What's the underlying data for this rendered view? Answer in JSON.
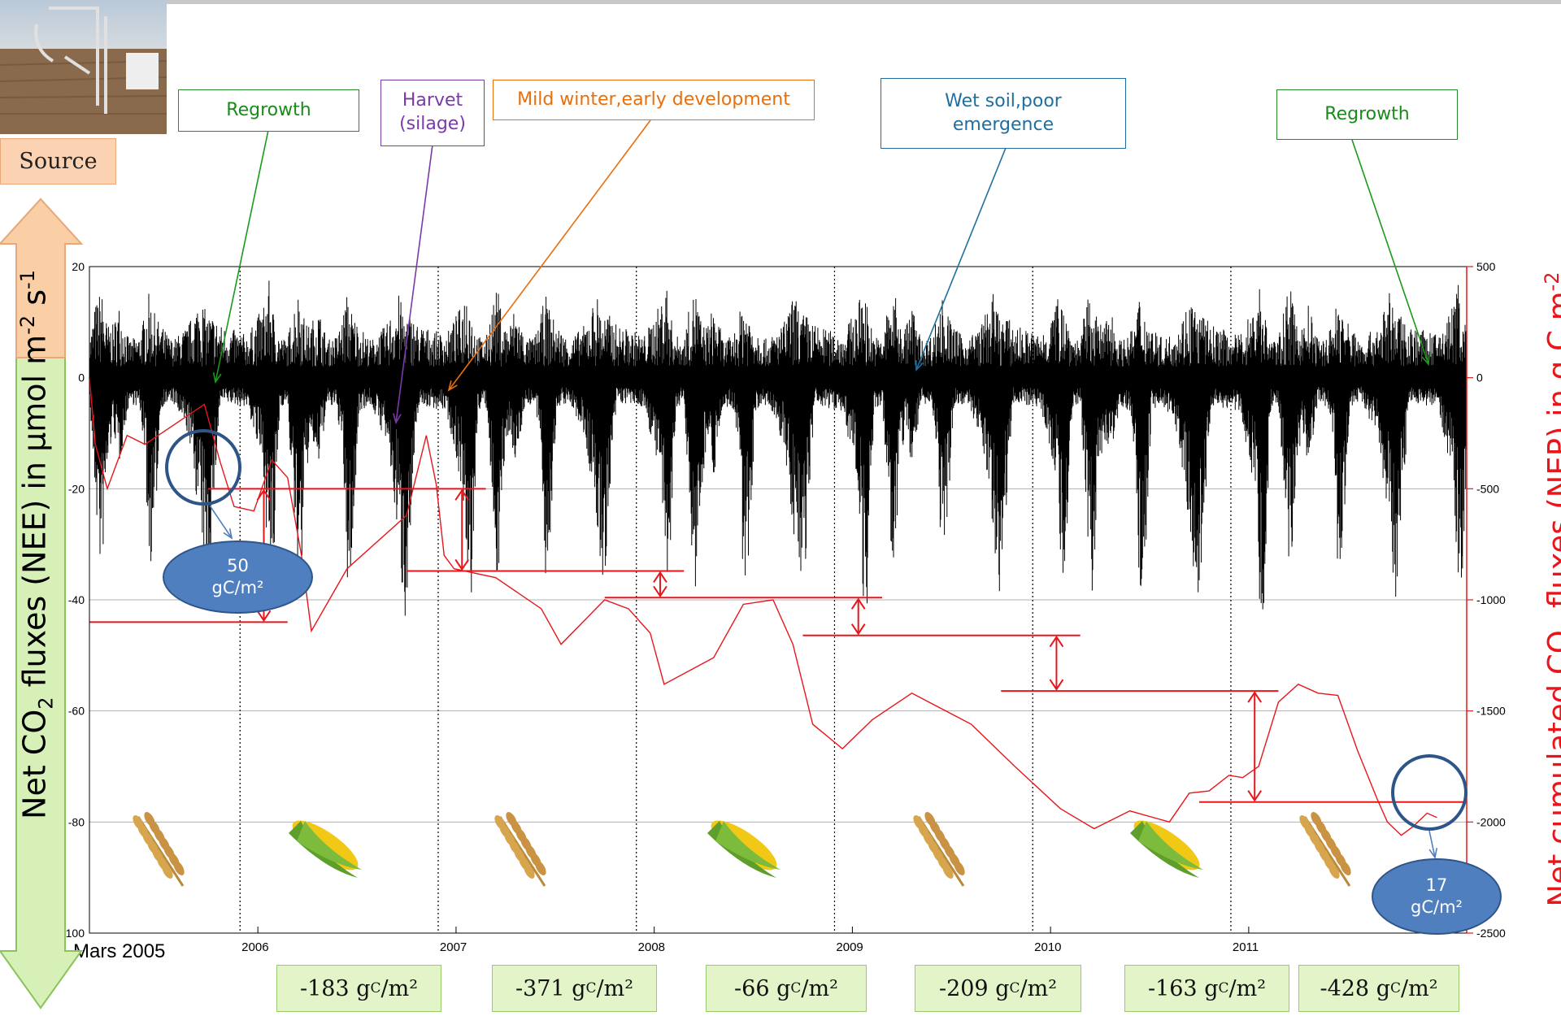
{
  "colors": {
    "flux": "#000000",
    "cumulative": "#e8161b",
    "gridline": "#b0b0b0"
  },
  "chart_data": {
    "type": "line",
    "xlabel_start": "Mars 2005",
    "x_ticks": [
      "2006",
      "2007",
      "2008",
      "2009",
      "2010",
      "2011"
    ],
    "y_left": {
      "label_parts": [
        "Net CO",
        "2",
        " fluxes (NEE) in µmol m",
        "-2",
        " s",
        "-1"
      ],
      "ticks": [
        20,
        0,
        -20,
        -40,
        -60,
        -80,
        -100
      ],
      "ylim": [
        -100,
        20
      ]
    },
    "y_right": {
      "label_parts": [
        "Net cumulated CO",
        "2",
        " fluxes (NEP) in g C m",
        "-2"
      ],
      "ticks": [
        500,
        0,
        -500,
        -1000,
        -1500,
        -2000,
        -2500
      ],
      "ylim": [
        -2500,
        500
      ]
    },
    "series": [
      {
        "role": "NEE half-hourly flux (µmol m-2 s-1)",
        "envelope": [
          {
            "t": 0.0,
            "hi": 5,
            "lo": -5
          },
          {
            "t": 0.03,
            "hi": 12,
            "lo": -25
          },
          {
            "t": 0.06,
            "hi": 15,
            "lo": -42
          },
          {
            "t": 0.09,
            "hi": 8,
            "lo": -20
          },
          {
            "t": 0.12,
            "hi": 8,
            "lo": -10
          },
          {
            "t": 0.15,
            "hi": 12,
            "lo": -18
          },
          {
            "t": 0.2,
            "hi": 5,
            "lo": -5
          },
          {
            "t": 0.25,
            "hi": 6,
            "lo": -6
          },
          {
            "t": 0.28,
            "hi": 10,
            "lo": -15
          },
          {
            "t": 0.3,
            "hi": 14,
            "lo": -40
          },
          {
            "t": 0.33,
            "hi": 10,
            "lo": -32
          },
          {
            "t": 0.36,
            "hi": 8,
            "lo": -6
          },
          {
            "t": 0.42,
            "hi": 5,
            "lo": -5
          },
          {
            "t": 0.5,
            "hi": 8,
            "lo": -12
          },
          {
            "t": 0.56,
            "hi": 14,
            "lo": -30
          },
          {
            "t": 0.59,
            "hi": 10,
            "lo": -45
          },
          {
            "t": 0.62,
            "hi": 10,
            "lo": -30
          },
          {
            "t": 0.66,
            "hi": 8,
            "lo": -5
          },
          {
            "t": 0.8,
            "hi": 6,
            "lo": -6
          },
          {
            "t": 0.88,
            "hi": 12,
            "lo": -20
          },
          {
            "t": 0.91,
            "hi": 17,
            "lo": -44
          },
          {
            "t": 0.93,
            "hi": 10,
            "lo": -40
          },
          {
            "t": 0.96,
            "hi": 6,
            "lo": -6
          },
          {
            "t": 1.0,
            "hi": 5,
            "lo": -5
          }
        ]
      },
      {
        "role": "Cumulative NEP (g C m-2)",
        "points": [
          [
            0.0,
            0
          ],
          [
            0.03,
            -300
          ],
          [
            0.09,
            -500
          ],
          [
            0.19,
            -260
          ],
          [
            0.28,
            -300
          ],
          [
            0.58,
            -120
          ],
          [
            0.66,
            -380
          ],
          [
            0.73,
            -580
          ],
          [
            0.83,
            -600
          ],
          [
            0.92,
            -370
          ],
          [
            1.0,
            -450
          ],
          [
            1.07,
            -800
          ],
          [
            1.12,
            -1140
          ],
          [
            1.3,
            -860
          ],
          [
            1.6,
            -620
          ],
          [
            1.7,
            -260
          ],
          [
            1.75,
            -480
          ],
          [
            1.79,
            -800
          ],
          [
            1.84,
            -860
          ],
          [
            2.05,
            -900
          ],
          [
            2.28,
            -1040
          ],
          [
            2.38,
            -1200
          ],
          [
            2.6,
            -1000
          ],
          [
            2.72,
            -1040
          ],
          [
            2.83,
            -1150
          ],
          [
            2.9,
            -1380
          ],
          [
            3.15,
            -1260
          ],
          [
            3.3,
            -1020
          ],
          [
            3.45,
            -1000
          ],
          [
            3.55,
            -1200
          ],
          [
            3.65,
            -1560
          ],
          [
            3.8,
            -1670
          ],
          [
            3.95,
            -1540
          ],
          [
            4.15,
            -1420
          ],
          [
            4.45,
            -1560
          ],
          [
            4.67,
            -1750
          ],
          [
            4.9,
            -1940
          ],
          [
            5.07,
            -2030
          ],
          [
            5.25,
            -1950
          ],
          [
            5.37,
            -1980
          ],
          [
            5.45,
            -2000
          ],
          [
            5.55,
            -1870
          ],
          [
            5.65,
            -1860
          ],
          [
            5.75,
            -1790
          ],
          [
            5.82,
            -1800
          ],
          [
            5.9,
            -1750
          ],
          [
            6.0,
            -1460
          ],
          [
            6.1,
            -1380
          ],
          [
            6.2,
            -1420
          ],
          [
            6.3,
            -1430
          ],
          [
            6.4,
            -1680
          ],
          [
            6.5,
            -1900
          ],
          [
            6.55,
            -2000
          ],
          [
            6.62,
            -2060
          ],
          [
            6.68,
            -2020
          ],
          [
            6.75,
            -1960
          ],
          [
            6.8,
            -1980
          ]
        ]
      }
    ],
    "annual_steps": [
      {
        "t0": 0.0,
        "t1": 1.0,
        "y": -1100
      },
      {
        "t0": 0.6,
        "t1": 2.0,
        "y": -500
      },
      {
        "t0": 1.6,
        "t1": 3.0,
        "y": -870
      },
      {
        "t0": 2.6,
        "t1": 4.0,
        "y": -990
      },
      {
        "t0": 3.6,
        "t1": 5.0,
        "y": -1160
      },
      {
        "t0": 4.6,
        "t1": 6.0,
        "y": -1410
      },
      {
        "t0": 5.6,
        "t1": 6.95,
        "y": -1910
      }
    ]
  },
  "annotations": {
    "regrowth_1": "Regrowth",
    "harvest_line1": "Harvet",
    "harvest_line2": "(silage)",
    "mild_winter": "Mild winter,early development",
    "wet_soil_line1": "Wet soil,poor",
    "wet_soil_line2": "emergence",
    "regrowth_2": "Regrowth",
    "source": "Source"
  },
  "bubbles": [
    {
      "value": "50",
      "unit": "gC/m²"
    },
    {
      "value": "17",
      "unit": "gC/m²"
    }
  ],
  "year_values": [
    {
      "num": "-183 g",
      "sub": "C",
      "tail": "/m²"
    },
    {
      "num": "-371 g",
      "sub": "C",
      "tail": "/m²"
    },
    {
      "num": "-66 g",
      "sub": "C",
      "tail": "/m²"
    },
    {
      "num": "-209 g",
      "sub": "C",
      "tail": "/m²"
    },
    {
      "num": "-163 g",
      "sub": "C",
      "tail": "/m²"
    },
    {
      "num": "-428 g",
      "sub": "C",
      "tail": "/m²"
    }
  ],
  "crop_icons": [
    "wheat-icon",
    "corn-icon",
    "wheat-icon",
    "corn-icon",
    "wheat-icon",
    "corn-icon",
    "wheat-icon"
  ]
}
